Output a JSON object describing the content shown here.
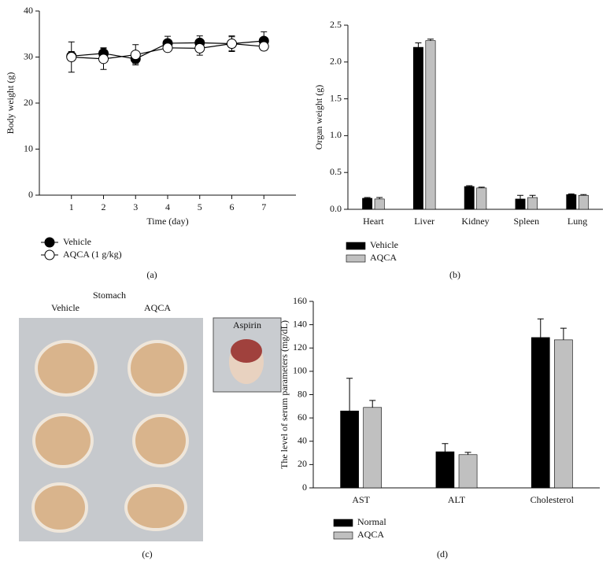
{
  "chart_data": [
    {
      "type": "line",
      "xlabel": "Time (day)",
      "ylabel": "Body weight (g)",
      "x": [
        1,
        2,
        3,
        4,
        5,
        6,
        7
      ],
      "xlim": [
        0,
        8
      ],
      "xticks": [
        1,
        2,
        3,
        4,
        5,
        6,
        7
      ],
      "ylim": [
        0,
        40
      ],
      "yticks": [
        0,
        10,
        20,
        30,
        40
      ],
      "legend": "below",
      "series": [
        {
          "name": "Vehicle",
          "color": "#000000",
          "values": [
            30.2,
            30.8,
            29.6,
            33.0,
            33.1,
            32.9,
            33.5
          ],
          "errors": [
            1.0,
            1.2,
            1.0,
            1.5,
            1.5,
            1.5,
            2.0
          ]
        },
        {
          "name": "AQCA (1 g/kg)",
          "color": "#ffffff",
          "values": [
            30.0,
            29.6,
            30.5,
            32.0,
            31.9,
            32.9,
            32.3
          ],
          "errors": [
            3.3,
            2.3,
            2.2,
            0.8,
            1.5,
            1.7,
            0.8
          ]
        }
      ]
    },
    {
      "type": "bar",
      "ylabel": "Organ weight (g)",
      "categories": [
        "Heart",
        "Liver",
        "Kidney",
        "Spleen",
        "Lung"
      ],
      "ylim": [
        0,
        2.5
      ],
      "yticks": [
        {
          "value": 0,
          "label": "0.0"
        },
        0.5,
        {
          "value": 1,
          "label": "1.0"
        },
        1.5,
        {
          "value": 2,
          "label": "2.0"
        },
        2.5
      ],
      "legend": "below",
      "series": [
        {
          "name": "Vehicle",
          "color": "#000000",
          "values": [
            0.15,
            2.2,
            0.31,
            0.14,
            0.2
          ],
          "errors": [
            0.01,
            0.06,
            0.01,
            0.05,
            0.01
          ]
        },
        {
          "name": "AQCA",
          "color": "#c0c0c0",
          "values": [
            0.14,
            2.29,
            0.29,
            0.16,
            0.19
          ],
          "errors": [
            0.02,
            0.02,
            0.01,
            0.03,
            0.01
          ]
        }
      ]
    },
    {
      "type": "bar",
      "ylabel": "The level of serum parameters (mg/dL)",
      "categories": [
        "AST",
        "ALT",
        "Cholesterol"
      ],
      "ylim": [
        0,
        160
      ],
      "yticks": [
        0,
        20,
        40,
        60,
        80,
        100,
        120,
        140,
        160
      ],
      "legend": "below",
      "series": [
        {
          "name": "Normal",
          "color": "#000000",
          "values": [
            66,
            31,
            129
          ],
          "errors": [
            28,
            7,
            16
          ]
        },
        {
          "name": "AQCA",
          "color": "#c0c0c0",
          "values": [
            69,
            28.5,
            127
          ],
          "errors": [
            6,
            2,
            10
          ]
        }
      ]
    }
  ],
  "photo": {
    "title": "Stomach",
    "labels": [
      "Vehicle",
      "AQCA",
      "Aspirin"
    ]
  },
  "panel_labels": [
    "(a)",
    "(b)",
    "(c)",
    "(d)"
  ]
}
